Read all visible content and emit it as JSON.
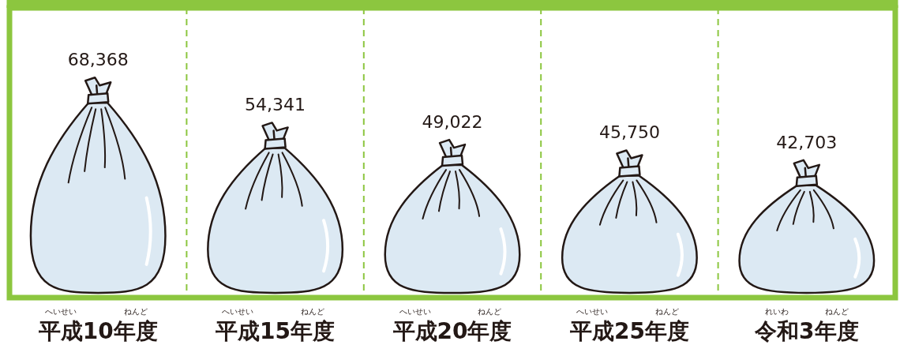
{
  "chart_data": {
    "type": "bar",
    "categories": [
      "平成10年度",
      "平成15年度",
      "平成20年度",
      "平成25年度",
      "令和3年度"
    ],
    "category_ruby": [
      [
        {
          "base": "平成",
          "reading": "へいせい"
        },
        {
          "base": "年度",
          "reading": "ねんど"
        }
      ],
      [
        {
          "base": "平成",
          "reading": "へいせい"
        },
        {
          "base": "年度",
          "reading": "ねんど"
        }
      ],
      [
        {
          "base": "平成",
          "reading": "へいせい"
        },
        {
          "base": "年度",
          "reading": "ねんど"
        }
      ],
      [
        {
          "base": "平成",
          "reading": "へいせい"
        },
        {
          "base": "年度",
          "reading": "ねんど"
        }
      ],
      [
        {
          "base": "令和",
          "reading": "れいわ"
        },
        {
          "base": "年度",
          "reading": "ねんど"
        }
      ]
    ],
    "values": [
      68368,
      54341,
      49022,
      45750,
      42703
    ],
    "value_labels": [
      "68,368",
      "54,341",
      "49,022",
      "45,750",
      "42,703"
    ],
    "data_labels": true,
    "color": "#dce9f3",
    "ylim": [
      0,
      90000
    ],
    "grid": false,
    "tick_labels": false
  }
}
